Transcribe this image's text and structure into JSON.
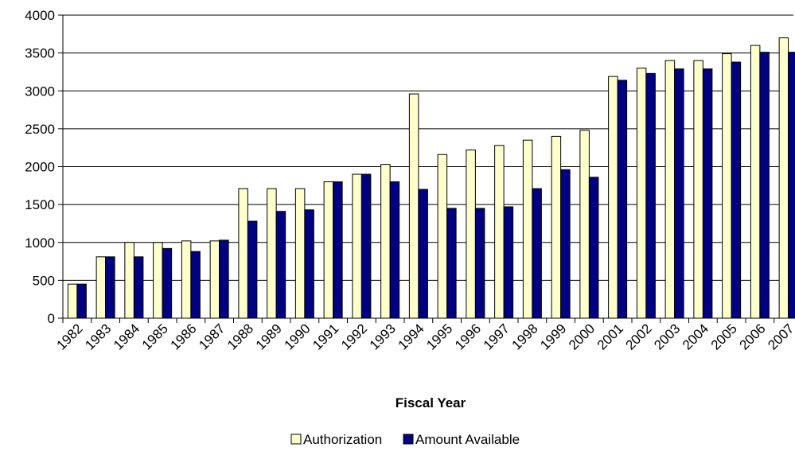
{
  "chart_data": {
    "type": "bar",
    "xlabel": "Fiscal Year",
    "ylim": [
      0,
      4000
    ],
    "yticks": [
      0,
      500,
      1000,
      1500,
      2000,
      2500,
      3000,
      3500,
      4000
    ],
    "grid": true,
    "legend_position": "bottom",
    "categories": [
      "1982",
      "1983",
      "1984",
      "1985",
      "1986",
      "1987",
      "1988",
      "1989",
      "1990",
      "1991",
      "1992",
      "1993",
      "1994",
      "1995",
      "1996",
      "1997",
      "1998",
      "1999",
      "2000",
      "2001",
      "2002",
      "2003",
      "2004",
      "2005",
      "2006",
      "2007"
    ],
    "series": [
      {
        "name": "Authorization",
        "color": "#FFFFCC",
        "values": [
          450,
          810,
          1000,
          1000,
          1020,
          1020,
          1710,
          1710,
          1710,
          1800,
          1900,
          2030,
          2960,
          2160,
          2220,
          2280,
          2350,
          2400,
          2480,
          3190,
          3300,
          3400,
          3400,
          3490,
          3600,
          3700
        ]
      },
      {
        "name": "Amount Available",
        "color": "#000080",
        "values": [
          450,
          810,
          810,
          920,
          880,
          1030,
          1280,
          1410,
          1430,
          1800,
          1900,
          1800,
          1700,
          1450,
          1450,
          1470,
          1710,
          1960,
          1860,
          3140,
          3230,
          3290,
          3290,
          3380,
          3510,
          3510
        ]
      }
    ]
  }
}
